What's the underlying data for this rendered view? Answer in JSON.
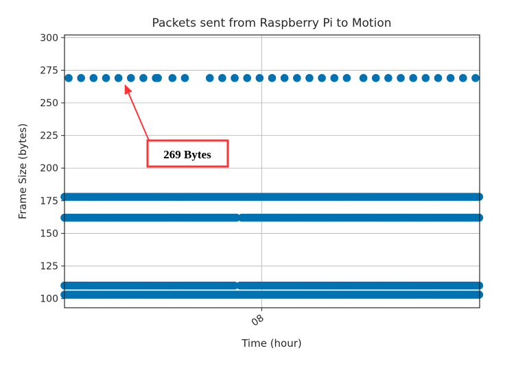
{
  "chart_data": {
    "type": "scatter",
    "title": "Packets sent from Raspberry Pi to Motion",
    "xlabel": "Time (hour)",
    "ylabel": "Frame Size (bytes)",
    "ylim": [
      93,
      302
    ],
    "yticks": [
      100,
      125,
      150,
      175,
      200,
      225,
      250,
      275,
      300
    ],
    "xticks": [
      {
        "label": "08",
        "value": 0.475
      }
    ],
    "xlim": [
      0,
      1
    ],
    "grid": true,
    "marker_color": "#0072b2",
    "series": [
      {
        "values_y": 269,
        "x": [
          0.01,
          0.04,
          0.07,
          0.1,
          0.13,
          0.16,
          0.19,
          0.22,
          0.225,
          0.26,
          0.29,
          0.35,
          0.38,
          0.41,
          0.44,
          0.47,
          0.5,
          0.53,
          0.56,
          0.59,
          0.62,
          0.65,
          0.68,
          0.72,
          0.75,
          0.78,
          0.81,
          0.84,
          0.87,
          0.9,
          0.93,
          0.96,
          0.99
        ]
      },
      {
        "values_y": 178,
        "x_range": [
          0.0,
          1.0
        ],
        "dense": true
      },
      {
        "values_y": 162,
        "x_range": [
          0.0,
          1.0
        ],
        "dense": true,
        "gaps": [
          [
            0.415,
            0.425
          ]
        ]
      },
      {
        "values_y": 110,
        "x_range": [
          0.0,
          1.0
        ],
        "dense": true,
        "gaps": [
          [
            0.41,
            0.42
          ]
        ]
      },
      {
        "values_y": 103,
        "x_range": [
          0.0,
          1.0
        ],
        "dense": true
      }
    ],
    "annotation": {
      "text": "269 Bytes",
      "target_x": 0.145,
      "target_y": 269,
      "color": "#ff3333"
    }
  }
}
